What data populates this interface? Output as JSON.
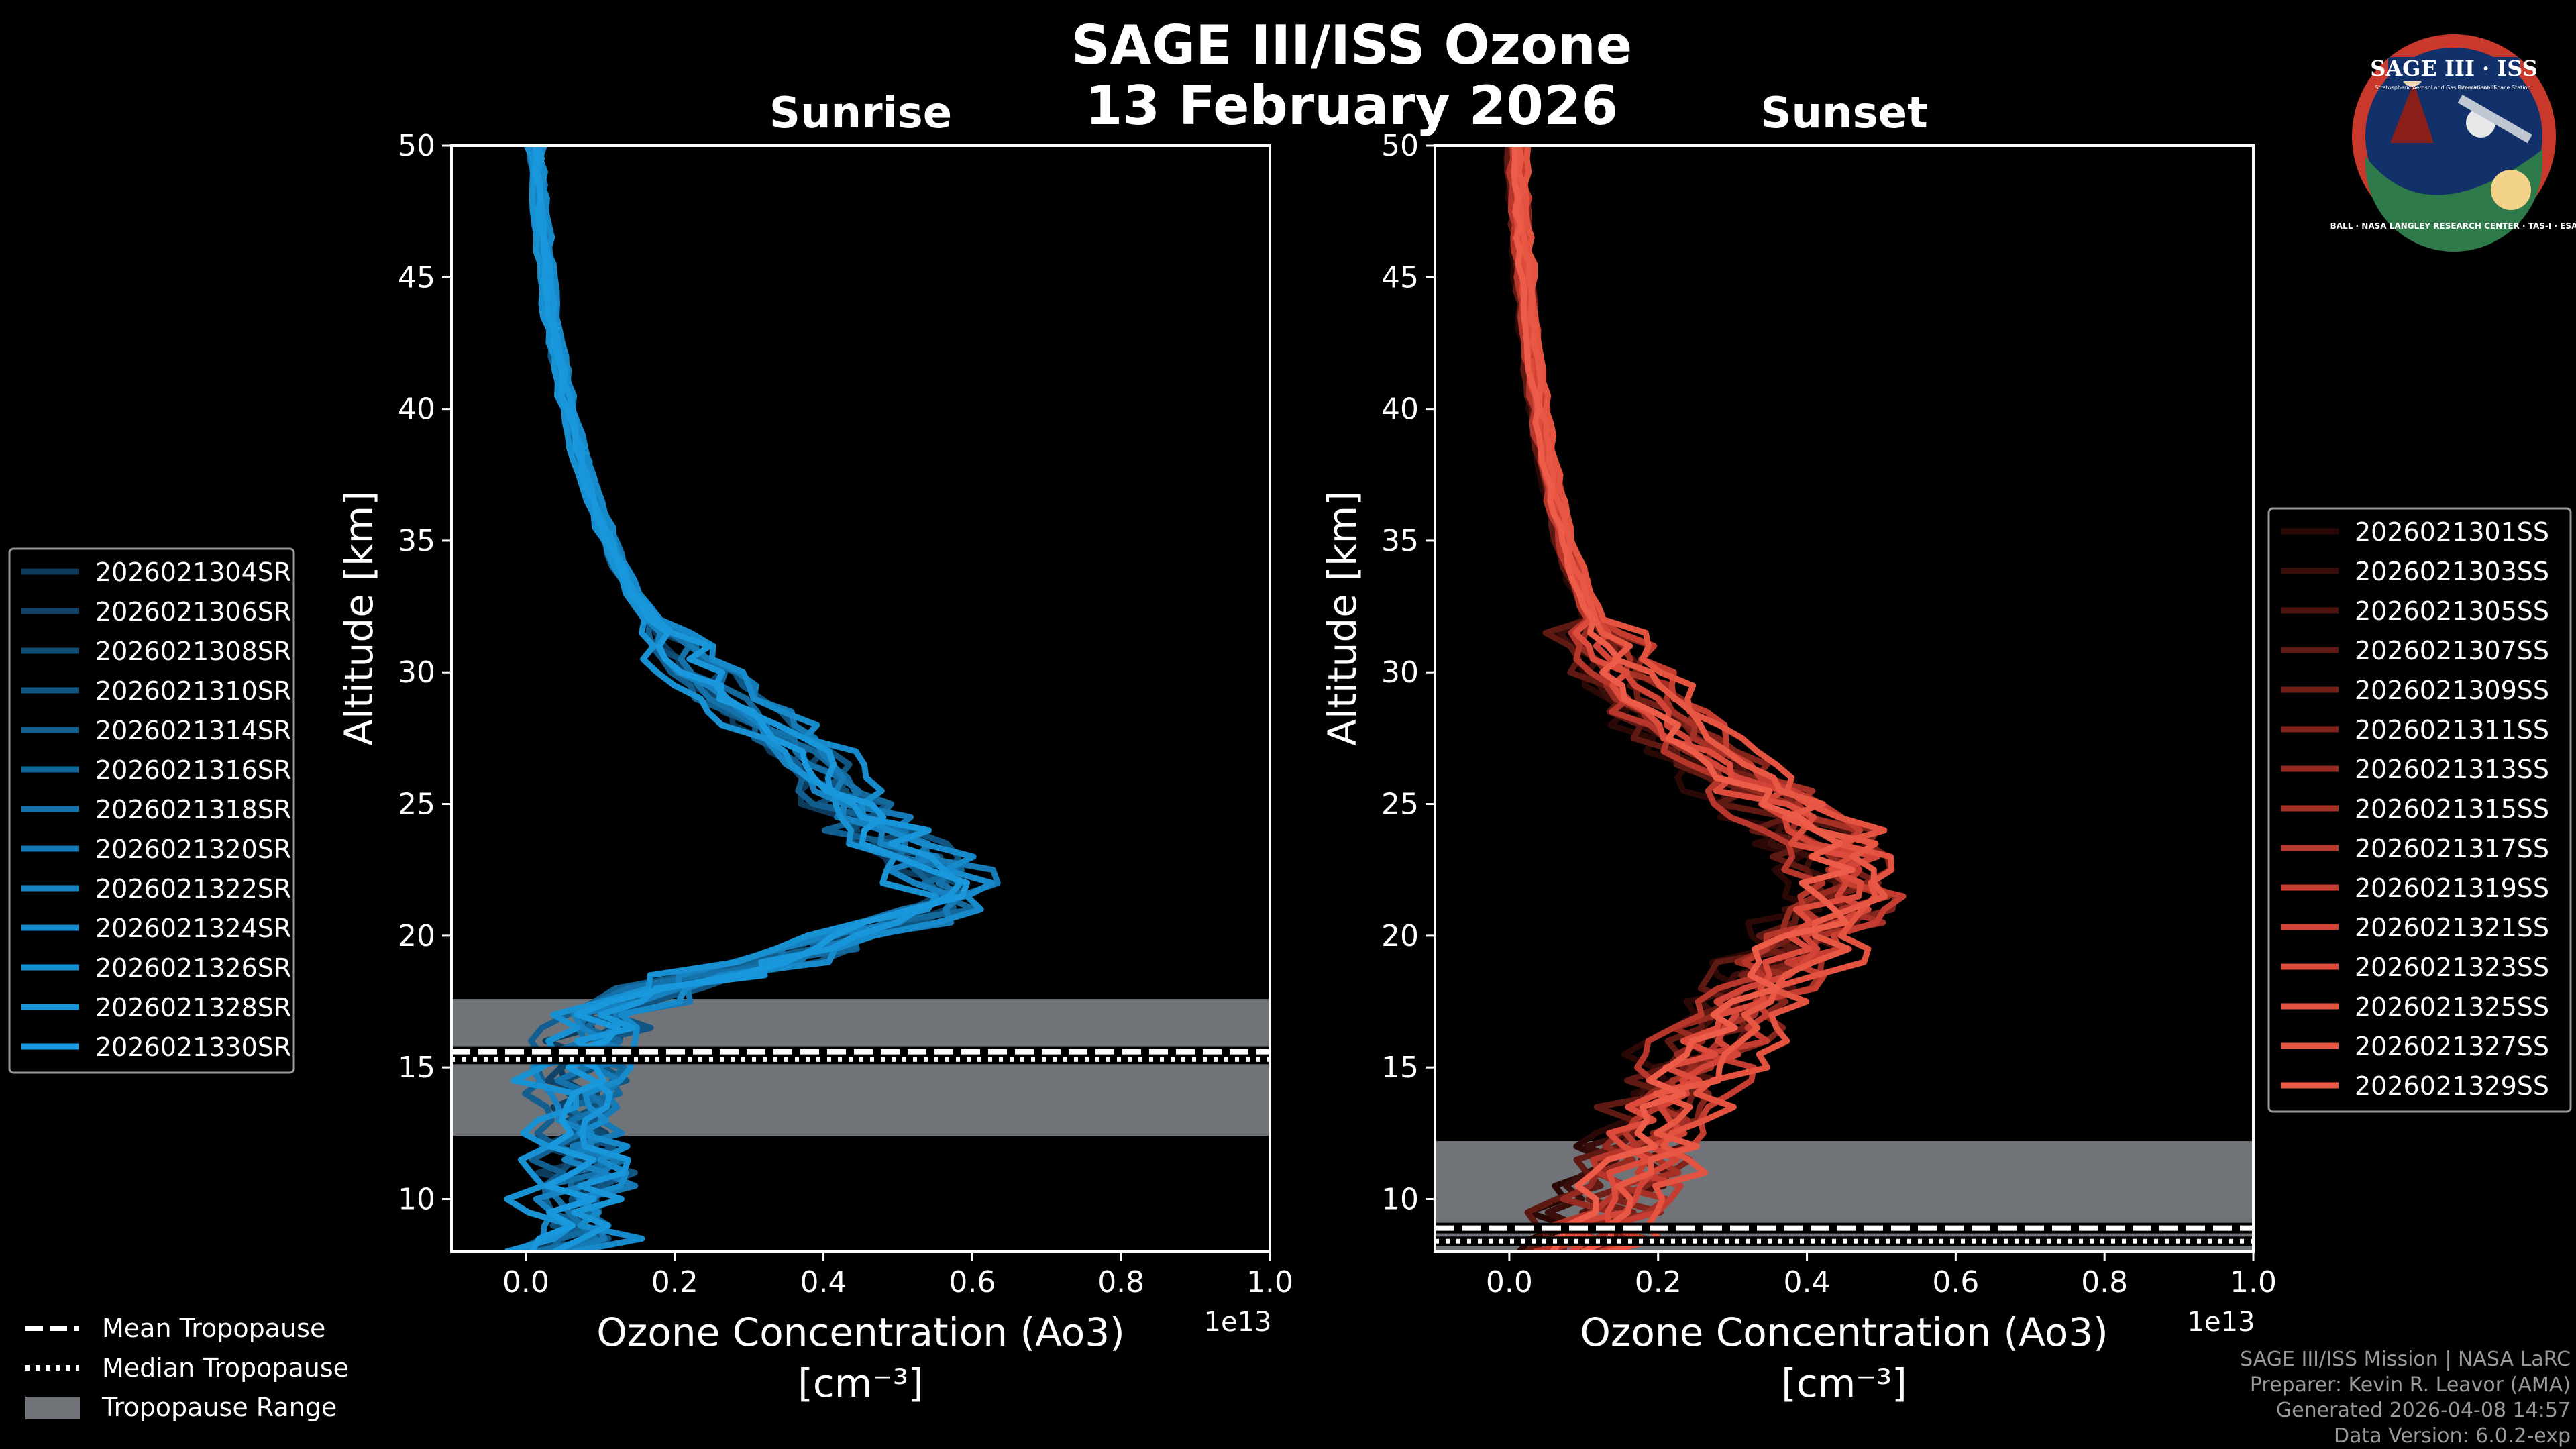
{
  "title_line1": "SAGE III/ISS Ozone",
  "title_line2": "13 February 2026",
  "logo": {
    "text_top": "SAGE III · ISS",
    "text_sub1": "Stratospheric Aerosol and Gas Experiment III",
    "text_sub2": "International Space Station",
    "ring_text": "BALL · NASA LANGLEY RESEARCH CENTER · TAS-I · ESA"
  },
  "colors": {
    "background": "#000000",
    "sunrise_base": "#1a8fd6",
    "sunset_base": "#e8543f",
    "trop_band": "#707478",
    "axis": "#ffffff"
  },
  "legend_bottom": {
    "mean": "Mean Tropopause",
    "median": "Median Tropopause",
    "range": "Tropopause Range"
  },
  "footer": {
    "line1": "SAGE III/ISS Mission | NASA LaRC",
    "line2": "Preparer: Kevin R. Leavor (AMA)",
    "line3": "Generated 2026-04-08 14:57",
    "line4": "Data Version: 6.0.2-exp"
  },
  "chart_data": [
    {
      "type": "line",
      "title": "Sunrise",
      "xlabel": "Ozone Concentration (Ao3)",
      "xunit": "[cm$^{-3}$]",
      "xunit_display": "[cm⁻³]",
      "x_scale_label": "1e13",
      "ylabel": "Altitude [km]",
      "xlim": [
        -0.1,
        1.0
      ],
      "ylim": [
        8,
        50
      ],
      "xticks": [
        "0.0",
        "0.2",
        "0.4",
        "0.6",
        "0.8",
        "1.0"
      ],
      "xtick_values": [
        0.0,
        0.2,
        0.4,
        0.6,
        0.8,
        1.0
      ],
      "yticks": [
        "10",
        "15",
        "20",
        "25",
        "30",
        "35",
        "40",
        "45",
        "50"
      ],
      "ytick_values": [
        10,
        15,
        20,
        25,
        30,
        35,
        40,
        45,
        50
      ],
      "tropopause": {
        "mean": 15.6,
        "median": 15.3,
        "range": [
          12.4,
          17.6
        ]
      },
      "base_profile": {
        "altitude": [
          8,
          9,
          10,
          11,
          12,
          13,
          14,
          15,
          16,
          17,
          18,
          19,
          20,
          21,
          22,
          23,
          24,
          25,
          26,
          27,
          28,
          29,
          30,
          31,
          32,
          33,
          34,
          35,
          36,
          37,
          38,
          39,
          40,
          41,
          42,
          43,
          44,
          45,
          46,
          47,
          48,
          49,
          50
        ],
        "ozone": [
          0.06,
          0.07,
          0.06,
          0.08,
          0.06,
          0.07,
          0.06,
          0.07,
          0.08,
          0.1,
          0.18,
          0.32,
          0.45,
          0.54,
          0.56,
          0.52,
          0.47,
          0.43,
          0.4,
          0.37,
          0.32,
          0.27,
          0.23,
          0.2,
          0.17,
          0.145,
          0.125,
          0.11,
          0.097,
          0.085,
          0.074,
          0.065,
          0.056,
          0.049,
          0.043,
          0.037,
          0.032,
          0.027,
          0.023,
          0.02,
          0.017,
          0.014,
          0.012
        ]
      },
      "series": [
        {
          "name": "2026021304SR",
          "offset": -0.02,
          "color": "#0e3a5c"
        },
        {
          "name": "2026021306SR",
          "offset": 0.01,
          "color": "#0f4468"
        },
        {
          "name": "2026021308SR",
          "offset": -0.01,
          "color": "#104d75"
        },
        {
          "name": "2026021310SR",
          "offset": 0.03,
          "color": "#115682"
        },
        {
          "name": "2026021314SR",
          "offset": -0.03,
          "color": "#125f8f"
        },
        {
          "name": "2026021316SR",
          "offset": 0.02,
          "color": "#13689c"
        },
        {
          "name": "2026021318SR",
          "offset": 0.0,
          "color": "#1471a9"
        },
        {
          "name": "2026021320SR",
          "offset": 0.04,
          "color": "#157ab6"
        },
        {
          "name": "2026021322SR",
          "offset": -0.015,
          "color": "#1682c1"
        },
        {
          "name": "2026021324SR",
          "offset": 0.05,
          "color": "#178acb"
        },
        {
          "name": "2026021326SR",
          "offset": -0.04,
          "color": "#1891d3"
        },
        {
          "name": "2026021328SR",
          "offset": 0.025,
          "color": "#1995da"
        },
        {
          "name": "2026021330SR",
          "offset": -0.005,
          "color": "#1a98de"
        }
      ],
      "legend_side": "left"
    },
    {
      "type": "line",
      "title": "Sunset",
      "xlabel": "Ozone Concentration (Ao3)",
      "xunit": "[cm$^{-3}$]",
      "xunit_display": "[cm⁻³]",
      "x_scale_label": "1e13",
      "ylabel": "Altitude [km]",
      "xlim": [
        -0.1,
        1.0
      ],
      "ylim": [
        8,
        50
      ],
      "xticks": [
        "0.0",
        "0.2",
        "0.4",
        "0.6",
        "0.8",
        "1.0"
      ],
      "xtick_values": [
        0.0,
        0.2,
        0.4,
        0.6,
        0.8,
        1.0
      ],
      "yticks": [
        "10",
        "15",
        "20",
        "25",
        "30",
        "35",
        "40",
        "45",
        "50"
      ],
      "ytick_values": [
        10,
        15,
        20,
        25,
        30,
        35,
        40,
        45,
        50
      ],
      "tropopause": {
        "mean": 8.9,
        "median": 8.4,
        "range": [
          8.0,
          12.2
        ]
      },
      "base_profile": {
        "altitude": [
          8,
          9,
          10,
          11,
          12,
          13,
          14,
          15,
          16,
          17,
          18,
          19,
          20,
          21,
          22,
          23,
          24,
          25,
          26,
          27,
          28,
          29,
          30,
          31,
          32,
          33,
          34,
          35,
          36,
          37,
          38,
          39,
          40,
          41,
          42,
          43,
          44,
          45,
          46,
          47,
          48,
          49,
          50
        ],
        "ozone": [
          0.12,
          0.1,
          0.14,
          0.16,
          0.18,
          0.2,
          0.22,
          0.24,
          0.27,
          0.3,
          0.33,
          0.37,
          0.41,
          0.44,
          0.45,
          0.44,
          0.41,
          0.36,
          0.31,
          0.26,
          0.22,
          0.18,
          0.15,
          0.13,
          0.113,
          0.098,
          0.085,
          0.074,
          0.065,
          0.057,
          0.05,
          0.044,
          0.039,
          0.034,
          0.03,
          0.026,
          0.023,
          0.02,
          0.017,
          0.015,
          0.013,
          0.011,
          0.01
        ]
      },
      "series": [
        {
          "name": "2026021301SS",
          "offset": -0.06,
          "color": "#2a0806"
        },
        {
          "name": "2026021303SS",
          "offset": -0.03,
          "color": "#3a0e0a"
        },
        {
          "name": "2026021305SS",
          "offset": 0.02,
          "color": "#4c130e"
        },
        {
          "name": "2026021307SS",
          "offset": -0.05,
          "color": "#5e1912"
        },
        {
          "name": "2026021309SS",
          "offset": 0.0,
          "color": "#701e16"
        },
        {
          "name": "2026021311SS",
          "offset": 0.04,
          "color": "#82241b"
        },
        {
          "name": "2026021313SS",
          "offset": -0.02,
          "color": "#942a20"
        },
        {
          "name": "2026021315SS",
          "offset": 0.03,
          "color": "#a53025"
        },
        {
          "name": "2026021317SS",
          "offset": -0.04,
          "color": "#b6362b"
        },
        {
          "name": "2026021319SS",
          "offset": 0.05,
          "color": "#c53d31"
        },
        {
          "name": "2026021321SS",
          "offset": 0.01,
          "color": "#d24437"
        },
        {
          "name": "2026021323SS",
          "offset": -0.01,
          "color": "#dd4b3c"
        },
        {
          "name": "2026021325SS",
          "offset": 0.06,
          "color": "#e45240"
        },
        {
          "name": "2026021327SS",
          "offset": 0.025,
          "color": "#e85744"
        },
        {
          "name": "2026021329SS",
          "offset": -0.015,
          "color": "#ec5c48"
        }
      ],
      "legend_side": "right"
    }
  ]
}
